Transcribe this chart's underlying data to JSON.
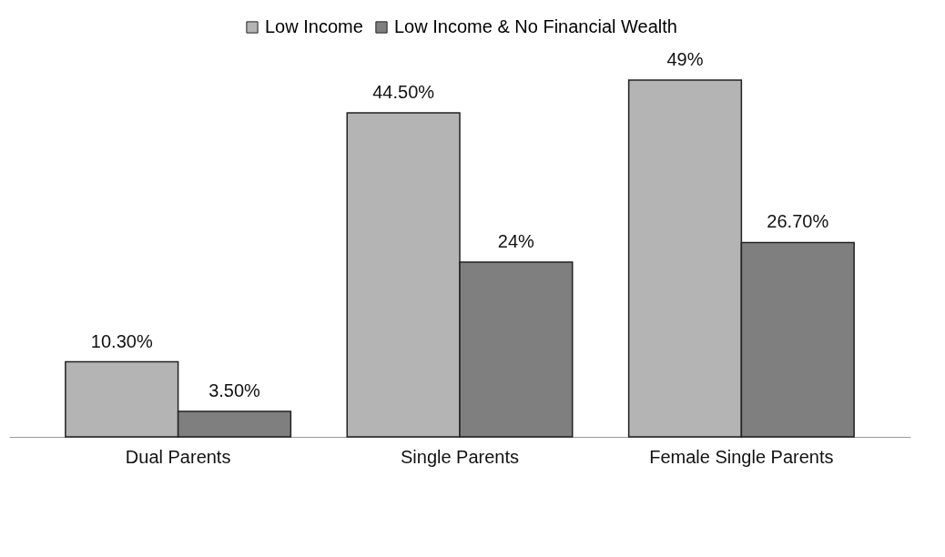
{
  "chart_data": {
    "type": "bar",
    "categories": [
      "Dual Parents",
      "Single Parents",
      "Female Single Parents"
    ],
    "series": [
      {
        "name": "Low Income",
        "color": "#b4b4b4",
        "values": [
          10.3,
          44.5,
          49
        ],
        "value_labels": [
          "10.30%",
          "44.50%",
          "49%"
        ]
      },
      {
        "name": "Low Income & No Financial Wealth",
        "color": "#7f7f7f",
        "values": [
          3.5,
          24,
          26.7
        ],
        "value_labels": [
          "3.50%",
          "24%",
          "26.70%"
        ]
      }
    ],
    "legend": "top"
  }
}
